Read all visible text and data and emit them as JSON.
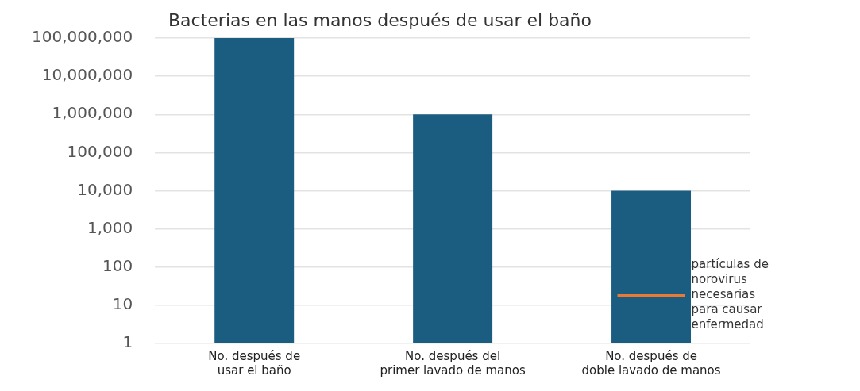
{
  "chart_data": {
    "type": "bar",
    "title": "Bacterias en las manos después de usar el baño",
    "categories": [
      "No. después de usar el baño",
      "No. después del primer lavado de manos",
      "No. después de doble lavado de manos"
    ],
    "values": [
      100000000,
      1000000,
      10000
    ],
    "color": "#1b5d80",
    "log": "y",
    "ylim": [
      1,
      100000000
    ],
    "yticks": [
      1,
      10,
      100,
      {
        "value": 1000,
        "label": "1,000"
      },
      {
        "value": 10000,
        "label": "10,000"
      },
      {
        "value": 100000,
        "label": "100,000"
      },
      {
        "value": 1000000,
        "label": "1,000,000"
      },
      {
        "value": 10000000,
        "label": "10,000,000"
      },
      {
        "value": 100000000,
        "label": "100,000,000"
      }
    ],
    "grid": "y",
    "legend": false,
    "ref_lines": [
      {
        "axis": "y",
        "value": 18,
        "label": "partículas de norovirus necesarias para causar enfermedad",
        "color": "#e87a35"
      }
    ]
  }
}
